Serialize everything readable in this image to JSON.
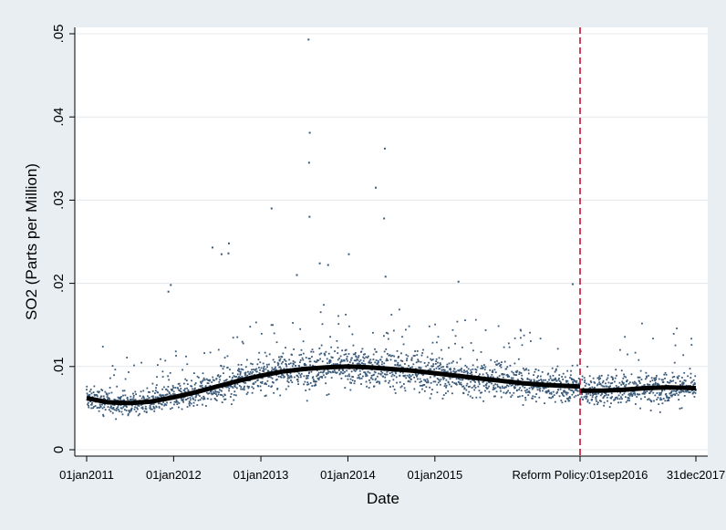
{
  "chart_data": {
    "type": "scatter",
    "title": "",
    "xlabel": "Date",
    "ylabel": "SO2 (Parts per Million)",
    "x_range": [
      "2011-01-01",
      "2017-12-31"
    ],
    "ylim": [
      0,
      0.05
    ],
    "grid": true,
    "legend": "none",
    "x_ticks": [
      {
        "date": "2011-01-01",
        "label": "01jan2011"
      },
      {
        "date": "2012-01-01",
        "label": "01jan2012"
      },
      {
        "date": "2013-01-01",
        "label": "01jan2013"
      },
      {
        "date": "2014-01-01",
        "label": "01jan2014"
      },
      {
        "date": "2015-01-01",
        "label": "01jan2015"
      },
      {
        "date": "2016-09-01",
        "label": "Reform Policy:01sep2016"
      },
      {
        "date": "2017-12-31",
        "label": "31dec2017"
      }
    ],
    "y_ticks": [
      {
        "value": 0,
        "label": "0"
      },
      {
        "value": 0.01,
        "label": ".01"
      },
      {
        "value": 0.02,
        "label": ".02"
      },
      {
        "value": 0.03,
        "label": ".03"
      },
      {
        "value": 0.04,
        "label": ".04"
      },
      {
        "value": 0.05,
        "label": ".05"
      }
    ],
    "reference_line": {
      "date": "2016-09-01",
      "style": "dashed",
      "color": "#c8102e"
    },
    "scatter_color": "#3a5a7a",
    "fit_line_color": "#000000",
    "fit_before": [
      {
        "x": "2011-01-01",
        "y": 0.0062
      },
      {
        "x": "2011-04-01",
        "y": 0.0057
      },
      {
        "x": "2011-07-01",
        "y": 0.0056
      },
      {
        "x": "2011-10-01",
        "y": 0.0058
      },
      {
        "x": "2012-01-01",
        "y": 0.0063
      },
      {
        "x": "2012-04-01",
        "y": 0.0069
      },
      {
        "x": "2012-07-01",
        "y": 0.0076
      },
      {
        "x": "2012-10-01",
        "y": 0.0083
      },
      {
        "x": "2013-01-01",
        "y": 0.0089
      },
      {
        "x": "2013-04-01",
        "y": 0.0094
      },
      {
        "x": "2013-07-01",
        "y": 0.0097
      },
      {
        "x": "2013-10-01",
        "y": 0.0099
      },
      {
        "x": "2014-01-01",
        "y": 0.01
      },
      {
        "x": "2014-04-01",
        "y": 0.0099
      },
      {
        "x": "2014-07-01",
        "y": 0.0097
      },
      {
        "x": "2014-10-01",
        "y": 0.0095
      },
      {
        "x": "2015-01-01",
        "y": 0.0092
      },
      {
        "x": "2015-04-01",
        "y": 0.0089
      },
      {
        "x": "2015-07-01",
        "y": 0.0086
      },
      {
        "x": "2015-10-01",
        "y": 0.0083
      },
      {
        "x": "2016-01-01",
        "y": 0.008
      },
      {
        "x": "2016-04-01",
        "y": 0.0078
      },
      {
        "x": "2016-09-01",
        "y": 0.0076
      }
    ],
    "fit_after": [
      {
        "x": "2016-09-01",
        "y": 0.0071
      },
      {
        "x": "2016-12-01",
        "y": 0.0071
      },
      {
        "x": "2017-03-01",
        "y": 0.0072
      },
      {
        "x": "2017-06-01",
        "y": 0.0074
      },
      {
        "x": "2017-09-01",
        "y": 0.0075
      },
      {
        "x": "2017-12-31",
        "y": 0.0074
      }
    ],
    "daily_points_summary": {
      "start": "2011-01-01",
      "end": "2017-12-31",
      "frequency": "daily",
      "note": "dense daily observations scattered around the fitted curve"
    },
    "outliers": [
      {
        "x": "2013-07-20",
        "y": 0.0493
      },
      {
        "x": "2013-07-25",
        "y": 0.0381
      },
      {
        "x": "2013-07-22",
        "y": 0.0345
      },
      {
        "x": "2013-07-24",
        "y": 0.028
      },
      {
        "x": "2014-06-05",
        "y": 0.0362
      },
      {
        "x": "2014-04-28",
        "y": 0.0315
      },
      {
        "x": "2014-06-02",
        "y": 0.0278
      },
      {
        "x": "2013-02-15",
        "y": 0.029
      },
      {
        "x": "2012-08-20",
        "y": 0.0248
      },
      {
        "x": "2012-08-18",
        "y": 0.0236
      },
      {
        "x": "2012-06-12",
        "y": 0.0243
      },
      {
        "x": "2012-07-20",
        "y": 0.0235
      },
      {
        "x": "2014-01-05",
        "y": 0.0235
      },
      {
        "x": "2013-10-10",
        "y": 0.0222
      },
      {
        "x": "2013-09-05",
        "y": 0.0224
      },
      {
        "x": "2011-12-20",
        "y": 0.0198
      },
      {
        "x": "2011-12-10",
        "y": 0.019
      },
      {
        "x": "2015-04-10",
        "y": 0.0202
      },
      {
        "x": "2016-08-01",
        "y": 0.0199
      },
      {
        "x": "2013-06-01",
        "y": 0.021
      },
      {
        "x": "2014-06-08",
        "y": 0.0208
      }
    ]
  }
}
